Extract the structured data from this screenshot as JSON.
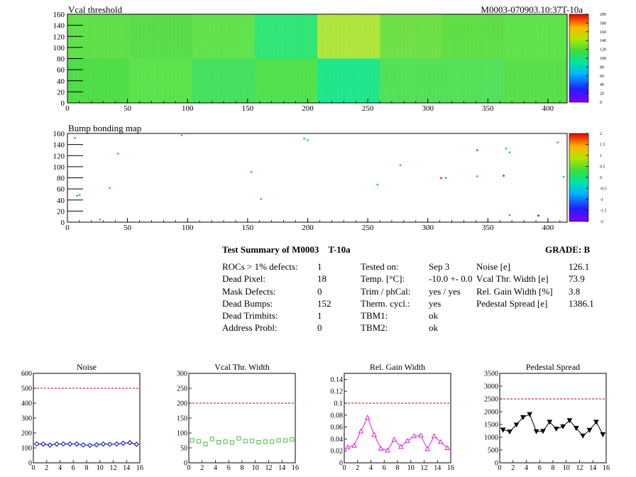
{
  "maps": {
    "vcal": {
      "title": "Vcal threshold",
      "label": "M0003-070903.10:37T-10a",
      "x_ticks": [
        "0",
        "50",
        "100",
        "150",
        "200",
        "250",
        "300",
        "350",
        "400"
      ],
      "y_ticks": [
        "0",
        "20",
        "40",
        "60",
        "80",
        "100",
        "120",
        "140",
        "160"
      ],
      "z_ticks": [
        "200",
        "180",
        "160",
        "140",
        "120",
        "100",
        "80",
        "60",
        "40",
        "20",
        "0"
      ]
    },
    "bump": {
      "title": "Bump bonding map",
      "x_ticks": [
        "0",
        "50",
        "100",
        "150",
        "200",
        "250",
        "300",
        "350",
        "400"
      ],
      "y_ticks": [
        "0",
        "20",
        "40",
        "60",
        "80",
        "100",
        "120",
        "140",
        "160"
      ],
      "z_ticks": [
        "2",
        "1.5",
        "1",
        "0.5",
        "0",
        "-0.5",
        "-1",
        "-1.5",
        "-2"
      ]
    }
  },
  "summary": {
    "title": "Test Summary of M0003",
    "temp_tag": "T-10a",
    "grade": "GRADE:  B",
    "col1": [
      {
        "label": "ROCs > 1% defects:",
        "value": "1"
      },
      {
        "label": "Dead Pixel:",
        "value": "18"
      },
      {
        "label": "Mask Defects:",
        "value": "0"
      },
      {
        "label": "Dead Bumps:",
        "value": "152"
      },
      {
        "label": "Dead Trimbits:",
        "value": "1"
      },
      {
        "label": "Address Probl:",
        "value": "0"
      }
    ],
    "col2": [
      {
        "label": "Tested on:",
        "value": "Sep 3"
      },
      {
        "label": "Temp. [°C]:",
        "value": "-10.0 +- 0.0"
      },
      {
        "label": "Trim / phCal:",
        "value": "yes / yes"
      },
      {
        "label": "Therm. cycl.:",
        "value": "yes"
      },
      {
        "label": "TBM1:",
        "value": "ok"
      },
      {
        "label": "TBM2:",
        "value": "ok"
      }
    ],
    "col3": [
      {
        "label": "Noise [e]",
        "value": "126.1"
      },
      {
        "label": "Vcal Thr. Width [e]",
        "value": "73.9"
      },
      {
        "label": "Rel. Gain Width [%]",
        "value": "3.8"
      },
      {
        "label": "Pedestal Spread [e]",
        "value": "1386.1"
      }
    ]
  },
  "chart_data": [
    {
      "type": "scatter",
      "title": "Noise",
      "xlim": [
        0,
        16
      ],
      "ylim": [
        0,
        600
      ],
      "x_ticks": [
        0,
        2,
        4,
        6,
        8,
        10,
        12,
        14,
        16
      ],
      "y_ticks": [
        0,
        100,
        200,
        300,
        400,
        500,
        600
      ],
      "threshold": 500,
      "color": "#0000cc",
      "marker": "diamond",
      "connect": true,
      "x": [
        0.5,
        1.5,
        2.5,
        3.5,
        4.5,
        5.5,
        6.5,
        7.5,
        8.5,
        9.5,
        10.5,
        11.5,
        12.5,
        13.5,
        14.5,
        15.5
      ],
      "values": [
        127,
        125,
        119,
        126,
        127,
        126,
        126,
        120,
        117,
        121,
        126,
        124,
        126,
        131,
        135,
        124
      ]
    },
    {
      "type": "scatter",
      "title": "Vcal Thr. Width",
      "xlim": [
        0,
        16
      ],
      "ylim": [
        0,
        300
      ],
      "x_ticks": [
        0,
        2,
        4,
        6,
        8,
        10,
        12,
        14,
        16
      ],
      "y_ticks": [
        0,
        50,
        100,
        150,
        200,
        250,
        300
      ],
      "threshold": 200,
      "color": "#44bb44",
      "marker": "square",
      "connect": false,
      "x": [
        0.5,
        1.5,
        2.5,
        3.5,
        4.5,
        5.5,
        6.5,
        7.5,
        8.5,
        9.5,
        10.5,
        11.5,
        12.5,
        13.5,
        14.5,
        15.5
      ],
      "values": [
        75,
        72,
        63,
        80,
        69,
        71,
        68,
        82,
        73,
        73,
        69,
        71,
        71,
        75,
        75,
        78
      ]
    },
    {
      "type": "line",
      "title": "Rel. Gain Width",
      "xlim": [
        0,
        16
      ],
      "ylim": [
        0,
        0.15
      ],
      "x_ticks": [
        0,
        2,
        4,
        6,
        8,
        10,
        12,
        14,
        16
      ],
      "y_ticks": [
        0,
        0.02,
        0.04,
        0.06,
        0.08,
        0.1,
        0.12,
        0.14
      ],
      "y_tick_labels": [
        "0",
        "0.02",
        "0.04",
        "0.06",
        "0.08",
        "0.1",
        "0.12",
        "0.14"
      ],
      "threshold": 0.1,
      "color": "#dd22dd",
      "marker": "triangle-up",
      "connect": true,
      "x": [
        0.5,
        1.5,
        2.5,
        3.5,
        4.5,
        5.5,
        6.5,
        7.5,
        8.5,
        9.5,
        10.5,
        11.5,
        12.5,
        13.5,
        14.5,
        15.5
      ],
      "values": [
        0.026,
        0.029,
        0.053,
        0.076,
        0.047,
        0.024,
        0.021,
        0.039,
        0.027,
        0.037,
        0.045,
        0.046,
        0.023,
        0.045,
        0.035,
        0.025
      ]
    },
    {
      "type": "line",
      "title": "Pedestal Spread",
      "xlim": [
        0,
        16
      ],
      "ylim": [
        0,
        3500
      ],
      "x_ticks": [
        0,
        2,
        4,
        6,
        8,
        10,
        12,
        14,
        16
      ],
      "y_ticks": [
        0,
        500,
        1000,
        1500,
        2000,
        2500,
        3000,
        3500
      ],
      "threshold": 2500,
      "color": "#000000",
      "marker": "triangle-down",
      "connect": true,
      "x": [
        0.5,
        1.5,
        2.5,
        3.5,
        4.5,
        5.5,
        6.5,
        7.5,
        8.5,
        9.5,
        10.5,
        11.5,
        12.5,
        13.5,
        14.5,
        15.5
      ],
      "values": [
        1290,
        1220,
        1490,
        1780,
        1900,
        1230,
        1240,
        1600,
        1330,
        1420,
        1660,
        1360,
        1060,
        1280,
        1600,
        1110
      ]
    }
  ]
}
